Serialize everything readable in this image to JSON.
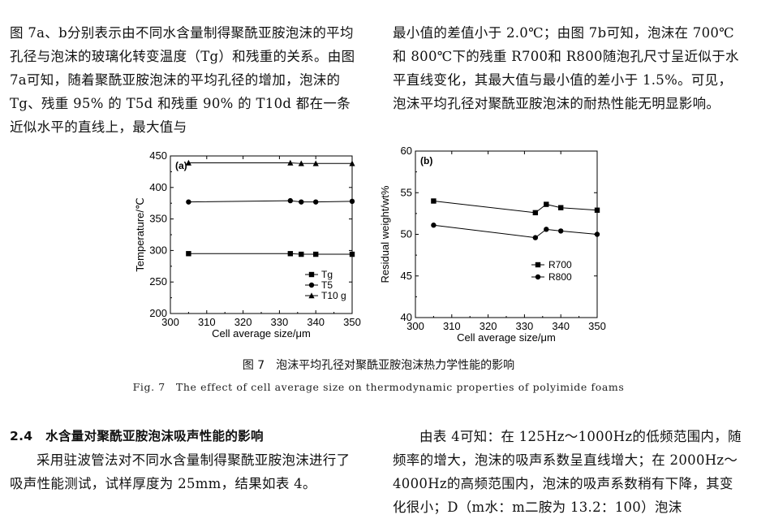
{
  "top_left": "图 7a、b分别表示由不同水含量制得聚酰亚胺泡沫的平均孔径与泡沫的玻璃化转变温度（Tg）和残重的关系。由图 7a可知，随着聚酰亚胺泡沫的平均孔径的增加，泡沫的 Tg、残重 95% 的 T5d 和残重 90% 的 T10d 都在一条近似水平的直线上，最大值与",
  "top_right": "最小值的差值小于 2.0℃；由图 7b可知，泡沫在 700℃和 800℃下的残重 R700和 R800随泡孔尺寸呈近似于水平直线变化，其最大值与最小值的差小于 1.5%。可见，泡沫平均孔径对聚酰亚胺泡沫的耐热性能无明显影响。",
  "caption_cn": "图 7　泡沫平均孔径对聚酰亚胺泡沫热力学性能的影响",
  "caption_en": "Fig. 7　The effect of cell average size on thermodynamic properties of polyimide foams",
  "section_heading": "2.4　水含量对聚酰亚胺泡沫吸声性能的影响",
  "bottom_left": "采用驻波管法对不同水含量制得聚酰亚胺泡沫进行了吸声性能测试，试样厚度为 25mm，结果如表 4。",
  "bottom_right": "由表 4可知：在 125Hz～1000Hz的低频范围内，随频率的增大，泡沫的吸声系数呈直线增大；在 2000Hz～4000Hz的高频范围内，泡沫的吸声系数稍有下降，其变化很小；D（m水：m二胺为 13.2：100）泡沫",
  "chart_data": [
    {
      "type": "line",
      "panel_label": "(a)",
      "xlabel": "Cell average size/μm",
      "ylabel": "Temperature/℃",
      "xlim": [
        300,
        350
      ],
      "ylim": [
        200,
        450
      ],
      "xticks": [
        300,
        310,
        320,
        330,
        340,
        350
      ],
      "yticks": [
        200,
        250,
        300,
        350,
        400,
        450
      ],
      "series": [
        {
          "name": "Tg",
          "marker": "square",
          "x": [
            305,
            333,
            336,
            340,
            350
          ],
          "y": [
            295,
            295,
            294,
            294,
            294
          ]
        },
        {
          "name": "T5d",
          "marker": "circle",
          "x": [
            305,
            333,
            336,
            340,
            350
          ],
          "y": [
            377,
            379,
            377,
            377,
            378
          ]
        },
        {
          "name": "T10d",
          "marker": "triangle",
          "x": [
            305,
            333,
            336,
            340,
            350
          ],
          "y": [
            439,
            439,
            438,
            438,
            438
          ]
        }
      ],
      "legend_labels": [
        "Tg",
        "T5",
        "T10 g"
      ],
      "legend": "bottom-right"
    },
    {
      "type": "line",
      "panel_label": "(b)",
      "xlabel": "Cell average size/μm",
      "ylabel": "Residual weight/wt%",
      "xlim": [
        300,
        350
      ],
      "ylim": [
        40,
        60
      ],
      "xticks": [
        300,
        310,
        320,
        330,
        340,
        350
      ],
      "yticks": [
        40,
        45,
        50,
        55,
        60
      ],
      "series": [
        {
          "name": "R700",
          "marker": "square",
          "x": [
            305,
            333,
            336,
            340,
            350
          ],
          "y": [
            54.0,
            52.6,
            53.6,
            53.2,
            52.9
          ]
        },
        {
          "name": "R800",
          "marker": "circle",
          "x": [
            305,
            333,
            336,
            340,
            350
          ],
          "y": [
            51.1,
            49.6,
            50.6,
            50.4,
            50.0
          ]
        }
      ],
      "legend_labels": [
        "R700",
        "R800"
      ],
      "legend": "bottom-right"
    }
  ]
}
